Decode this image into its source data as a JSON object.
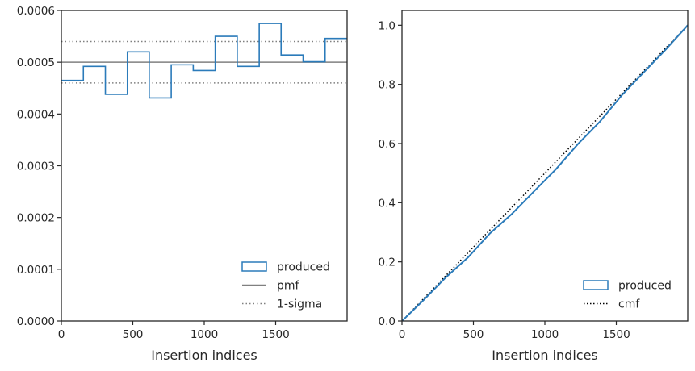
{
  "chart_data": [
    {
      "type": "step",
      "xlabel": "Insertion indices",
      "ylabel": "",
      "xlim": [
        0,
        2000
      ],
      "ylim": [
        0,
        0.0006
      ],
      "xticks": [
        0,
        500,
        1000,
        1500
      ],
      "xtick_labels": [
        "0",
        "500",
        "1000",
        "1500"
      ],
      "yticks": [
        0,
        0.0001,
        0.0002,
        0.0003,
        0.0004,
        0.0005,
        0.0006
      ],
      "ytick_labels": [
        "0.0000",
        "0.0001",
        "0.0002",
        "0.0003",
        "0.0004",
        "0.0005",
        "0.0006"
      ],
      "bin_edges": [
        0,
        154,
        308,
        462,
        615,
        769,
        923,
        1077,
        1231,
        1385,
        1538,
        1692,
        1846,
        2000
      ],
      "series": [
        {
          "name": "produced",
          "style": "step",
          "color": "#2b7bba",
          "values": [
            0.000465,
            0.000492,
            0.000438,
            0.00052,
            0.000431,
            0.000495,
            0.000484,
            0.00055,
            0.000492,
            0.000575,
            0.000514,
            0.000501,
            0.000546
          ]
        },
        {
          "name": "pmf",
          "style": "hline",
          "color": "#808080",
          "y": 0.0005
        },
        {
          "name": "1-sigma",
          "style": "hline-dotted",
          "color": "#808080",
          "y": [
            0.00046,
            0.00054
          ]
        }
      ],
      "legend": {
        "placement": "lower-right",
        "entries": [
          "produced",
          "pmf",
          "1-sigma"
        ]
      },
      "grid": false
    },
    {
      "type": "line",
      "xlabel": "Insertion indices",
      "ylabel": "",
      "xlim": [
        0,
        2000
      ],
      "ylim": [
        0,
        1.05
      ],
      "xticks": [
        0,
        500,
        1000,
        1500
      ],
      "xtick_labels": [
        "0",
        "500",
        "1000",
        "1500"
      ],
      "yticks": [
        0,
        0.2,
        0.4,
        0.6,
        0.8,
        1.0
      ],
      "ytick_labels": [
        "0.0",
        "0.2",
        "0.4",
        "0.6",
        "0.8",
        "1.0"
      ],
      "series": [
        {
          "name": "produced",
          "color": "#2b7bba",
          "x": [
            0,
            154,
            308,
            462,
            615,
            769,
            923,
            1077,
            1231,
            1385,
            1538,
            1692,
            1846,
            2000
          ],
          "values": [
            0,
            0.072,
            0.148,
            0.215,
            0.296,
            0.362,
            0.438,
            0.513,
            0.598,
            0.674,
            0.763,
            0.841,
            0.918,
            1.0
          ]
        },
        {
          "name": "cmf",
          "color": "#000000",
          "style": "dotted",
          "x": [
            0,
            2000
          ],
          "values": [
            0,
            1.0
          ]
        }
      ],
      "legend": {
        "placement": "lower-right",
        "entries": [
          "produced",
          "cmf"
        ]
      },
      "grid": false
    }
  ]
}
